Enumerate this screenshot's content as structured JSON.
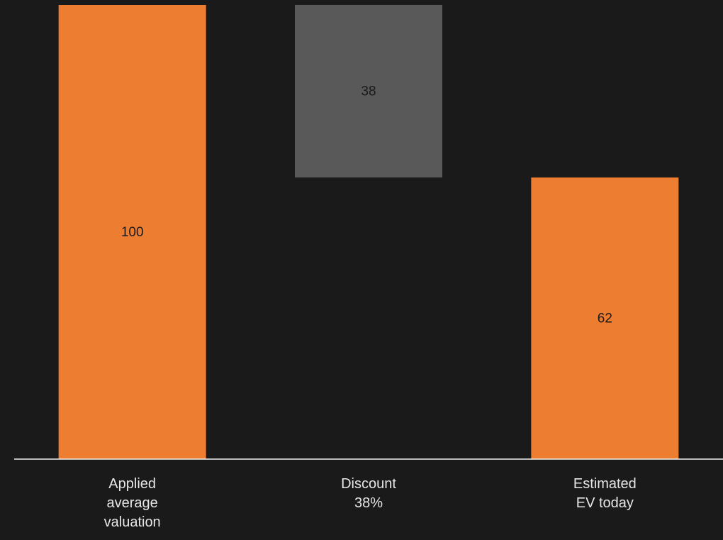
{
  "chart_data": {
    "type": "waterfall",
    "categories": [
      "Applied\naverage\nvaluation",
      "Discount\n38%",
      "Estimated\nEV today"
    ],
    "values": [
      100,
      -38,
      62
    ],
    "value_labels": [
      "100",
      "38",
      "62"
    ],
    "measure": [
      "absolute",
      "relative",
      "total"
    ],
    "colors": [
      "#ed7d31",
      "#595959",
      "#ed7d31"
    ],
    "ylim": [
      0,
      100
    ]
  }
}
